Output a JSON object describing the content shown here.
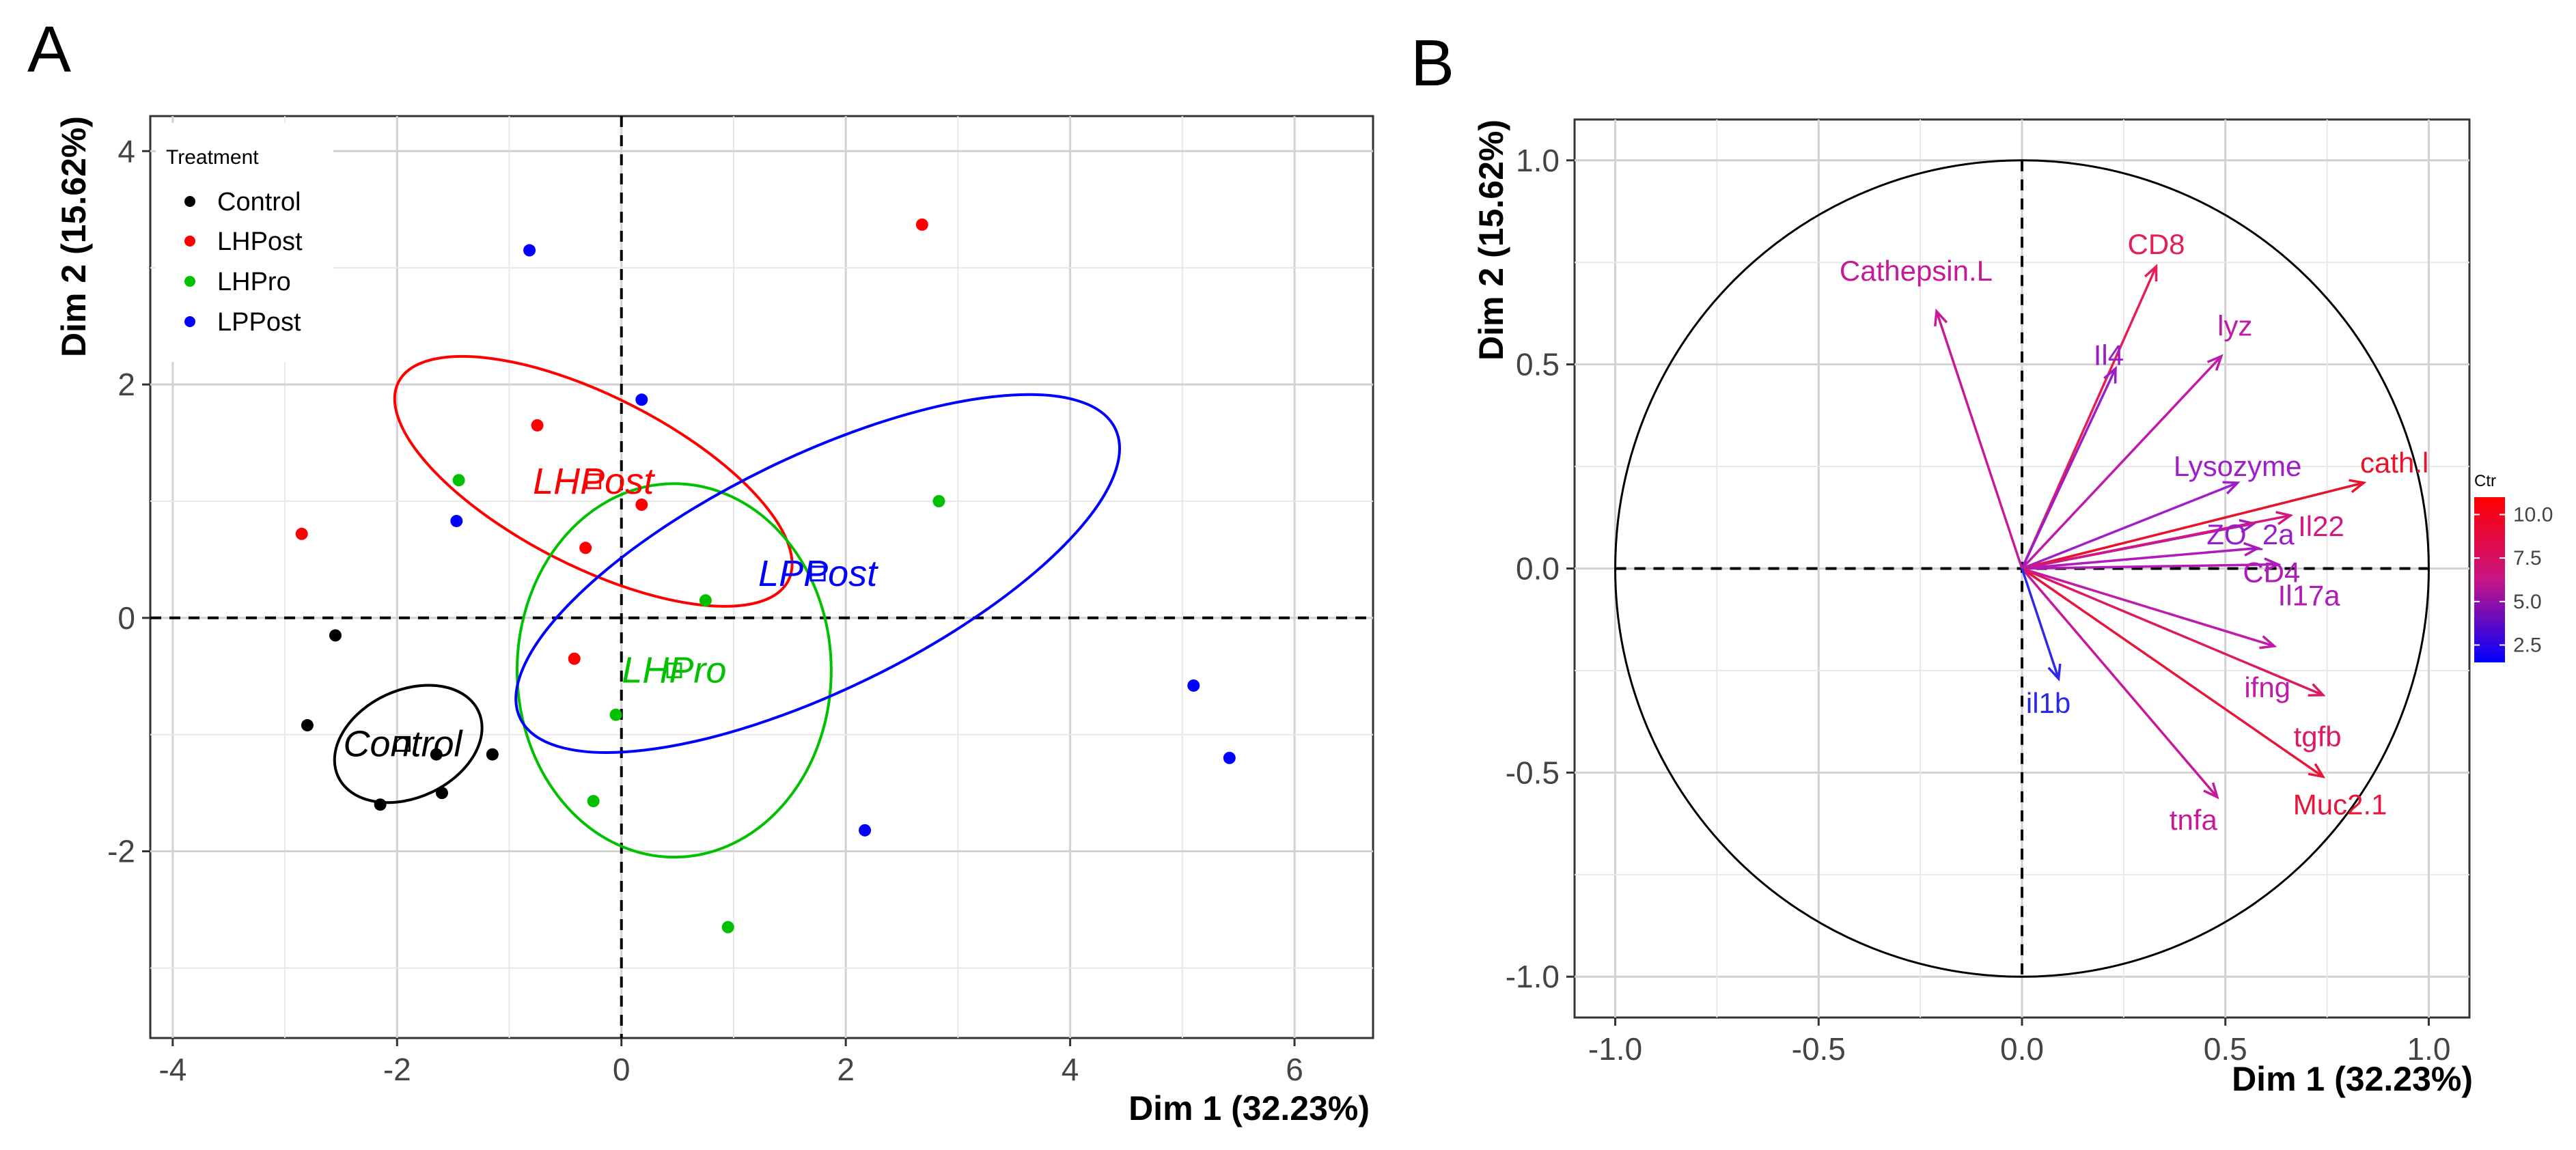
{
  "chart_data": [
    {
      "panel": "A",
      "type": "scatter",
      "xlabel": "Dim 1 (32.23%)",
      "ylabel": "Dim 2 (15.62%)",
      "xlim": [
        -4.2,
        6.7
      ],
      "ylim": [
        -3.6,
        4.3
      ],
      "xticks": [
        -4,
        -2,
        0,
        2,
        4,
        6
      ],
      "yticks": [
        -2,
        0,
        2,
        4
      ],
      "xtick_labels": [
        "-4",
        "-2",
        "0",
        "2",
        "4",
        "6"
      ],
      "ytick_labels": [
        "-2",
        "0",
        "2",
        "4"
      ],
      "grid": true,
      "legend": {
        "title": "Treatment",
        "position": "top-left",
        "entries": [
          {
            "label": "Control",
            "color": "#000000"
          },
          {
            "label": "LHPost",
            "color": "#ff0000"
          },
          {
            "label": "LHPro",
            "color": "#00c000"
          },
          {
            "label": "LPPost",
            "color": "#0000ff"
          }
        ]
      },
      "series": [
        {
          "name": "Control",
          "color": "#000000",
          "points": [
            [
              -2.55,
              -0.15
            ],
            [
              -2.8,
              -0.92
            ],
            [
              -2.15,
              -1.6
            ],
            [
              -1.6,
              -1.5
            ],
            [
              -1.65,
              -1.17
            ],
            [
              -1.15,
              -1.17
            ]
          ],
          "centroid": [
            -1.95,
            -1.08
          ],
          "ellipse": {
            "cx": -1.9,
            "cy": -1.08,
            "rx": 0.69,
            "ry": 0.46,
            "angle": -25
          },
          "label": "Control"
        },
        {
          "name": "LHPost",
          "color": "#ff0000",
          "points": [
            [
              -2.85,
              0.72
            ],
            [
              -0.75,
              1.65
            ],
            [
              -0.32,
              0.6
            ],
            [
              0.18,
              0.97
            ],
            [
              -0.42,
              -0.35
            ],
            [
              2.68,
              3.37
            ]
          ],
          "centroid": [
            -0.25,
            1.17
          ],
          "ellipse": {
            "cx": -0.25,
            "cy": 1.17,
            "rx": 1.95,
            "ry": 0.73,
            "angle": 27
          },
          "label": "LHPost"
        },
        {
          "name": "LHPro",
          "color": "#00c000",
          "points": [
            [
              -1.45,
              1.18
            ],
            [
              0.75,
              0.15
            ],
            [
              -0.05,
              -0.83
            ],
            [
              -0.25,
              -1.57
            ],
            [
              0.95,
              -2.65
            ],
            [
              2.83,
              1.0
            ]
          ],
          "centroid": [
            0.47,
            -0.45
          ],
          "ellipse": {
            "cx": 0.47,
            "cy": -0.45,
            "rx": 1.4,
            "ry": 1.6,
            "angle": 0
          },
          "label": "LHPro"
        },
        {
          "name": "LPPost",
          "color": "#0000ff",
          "points": [
            [
              -0.82,
              3.15
            ],
            [
              0.18,
              1.87
            ],
            [
              -1.47,
              0.83
            ],
            [
              2.17,
              -1.82
            ],
            [
              5.1,
              -0.58
            ],
            [
              5.42,
              -1.2
            ]
          ],
          "centroid": [
            1.75,
            0.38
          ],
          "ellipse": {
            "cx": 1.75,
            "cy": 0.38,
            "rx": 2.95,
            "ry": 1.0,
            "angle": -26
          },
          "label": "LPPost"
        }
      ]
    },
    {
      "panel": "B",
      "type": "vector",
      "xlabel": "Dim 1 (32.23%)",
      "ylabel": "Dim 2 (15.62%)",
      "xlim": [
        -1.1,
        1.1
      ],
      "ylim": [
        -1.1,
        1.1
      ],
      "xticks": [
        -1.0,
        -0.5,
        0.0,
        0.5,
        1.0
      ],
      "yticks": [
        -1.0,
        -0.5,
        0.0,
        0.5,
        1.0
      ],
      "xtick_labels": [
        "-1.0",
        "-0.5",
        "0.0",
        "0.5",
        "1.0"
      ],
      "ytick_labels": [
        "-1.0",
        "-0.5",
        "0.0",
        "0.5",
        "1.0"
      ],
      "grid": true,
      "colorbar": {
        "title": "Ctr",
        "range": [
          1.5,
          11.0
        ],
        "ticks": [
          2.5,
          5.0,
          7.5,
          10.0
        ],
        "tick_labels": [
          "2.5",
          "5.0",
          "7.5",
          "10.0"
        ],
        "colors": [
          "#0000ff",
          "#c71585",
          "#ff0000"
        ]
      },
      "variables": [
        {
          "name": "Cathepsin.L",
          "x": -0.21,
          "y": 0.63,
          "ctr": 8.0,
          "color": "#c8189a"
        },
        {
          "name": "CD8",
          "x": 0.33,
          "y": 0.74,
          "ctr": 9.5,
          "color": "#e51e55"
        },
        {
          "name": "lyz",
          "x": 0.49,
          "y": 0.52,
          "ctr": 7.0,
          "color": "#c01aa8"
        },
        {
          "name": "Il4",
          "x": 0.23,
          "y": 0.49,
          "ctr": 5.0,
          "color": "#9a1ec8"
        },
        {
          "name": "Lysozyme",
          "x": 0.53,
          "y": 0.21,
          "ctr": 5.5,
          "color": "#a01ec8"
        },
        {
          "name": "cath.l",
          "x": 0.84,
          "y": 0.21,
          "ctr": 10.5,
          "color": "#e8122a"
        },
        {
          "name": "ZO_2a",
          "x": 0.57,
          "y": 0.11,
          "ctr": 5.0,
          "color": "#9a1ec8"
        },
        {
          "name": "Il22",
          "x": 0.66,
          "y": 0.13,
          "ctr": 8.5,
          "color": "#d21880"
        },
        {
          "name": "CD4",
          "x": 0.58,
          "y": 0.05,
          "ctr": 6.0,
          "color": "#b01ab8"
        },
        {
          "name": "Il17a",
          "x": 0.63,
          "y": 0.01,
          "ctr": 6.5,
          "color": "#b01ab8"
        },
        {
          "name": "ifng",
          "x": 0.62,
          "y": -0.19,
          "ctr": 7.0,
          "color": "#c01aa8"
        },
        {
          "name": "tgfb",
          "x": 0.74,
          "y": -0.31,
          "ctr": 9.0,
          "color": "#dc1a64"
        },
        {
          "name": "Muc2.1",
          "x": 0.74,
          "y": -0.51,
          "ctr": 10.0,
          "color": "#e8143c"
        },
        {
          "name": "tnfa",
          "x": 0.48,
          "y": -0.56,
          "ctr": 8.0,
          "color": "#c8189a"
        },
        {
          "name": "il1b",
          "x": 0.09,
          "y": -0.27,
          "ctr": 1.8,
          "color": "#2a2ae8"
        }
      ]
    }
  ]
}
